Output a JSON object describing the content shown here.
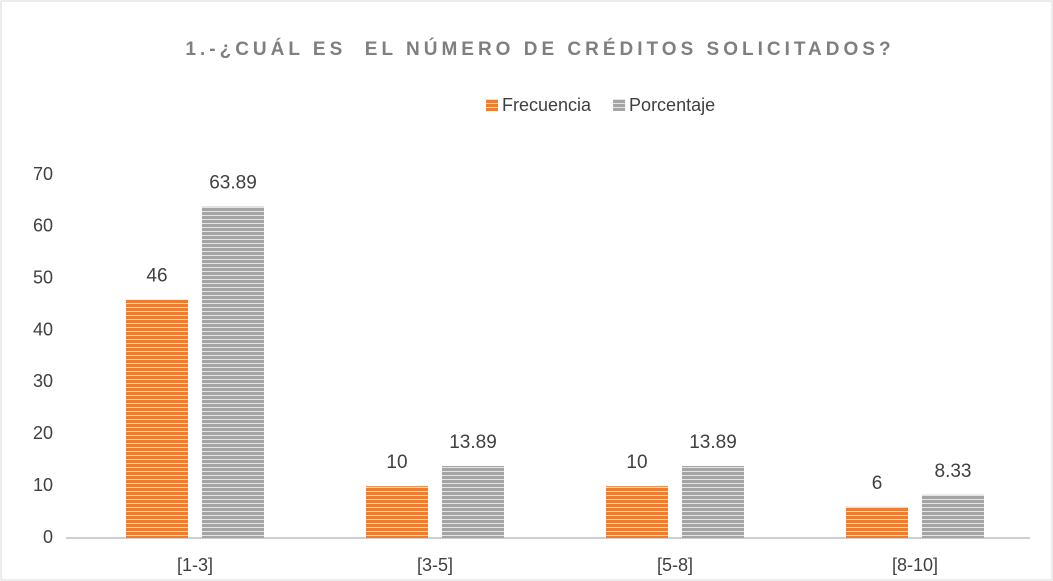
{
  "chart_data": {
    "type": "bar",
    "title": "1.-¿CUÁL ES  EL NÚMERO DE CRÉDITOS SOLICITADOS?",
    "categories": [
      "[1-3]",
      "[3-5]",
      "[5-8]",
      "[8-10]"
    ],
    "series": [
      {
        "name": "Frecuencia",
        "color": "#ed7d31",
        "values": [
          46,
          10,
          10,
          6
        ]
      },
      {
        "name": "Porcentaje",
        "color": "#a5a5a5",
        "values": [
          63.89,
          13.89,
          13.89,
          8.33
        ]
      }
    ],
    "ylim": [
      0,
      70
    ],
    "yticks": [
      0,
      10,
      20,
      30,
      40,
      50,
      60,
      70
    ],
    "grid": false,
    "legend": "top"
  }
}
